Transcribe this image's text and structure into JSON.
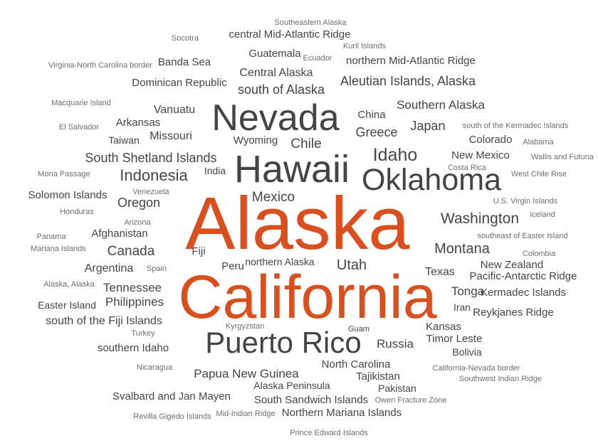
{
  "chart_data": {
    "type": "wordcloud",
    "title": "",
    "colors": {
      "accent": "#d9501e",
      "primary": "#444444",
      "secondary": "#6e6e6e",
      "tertiary": "#8a8a8a"
    },
    "words": [
      {
        "text": "Alaska",
        "weight": 100,
        "tier": "accent"
      },
      {
        "text": "California",
        "weight": 82,
        "tier": "accent"
      },
      {
        "text": "Hawaii",
        "weight": 52,
        "tier": "primary"
      },
      {
        "text": "Nevada",
        "weight": 50,
        "tier": "primary"
      },
      {
        "text": "Oklahoma",
        "weight": 41,
        "tier": "primary"
      },
      {
        "text": "Puerto Rico",
        "weight": 40,
        "tier": "primary"
      },
      {
        "text": "Idaho",
        "weight": 31,
        "tier": "primary"
      },
      {
        "text": "Indonesia",
        "weight": 25,
        "tier": "primary"
      },
      {
        "text": "Washington",
        "weight": 24,
        "tier": "primary"
      },
      {
        "text": "Montana",
        "weight": 22,
        "tier": "primary"
      },
      {
        "text": "Utah",
        "weight": 22,
        "tier": "primary"
      },
      {
        "text": "Chile",
        "weight": 20,
        "tier": "primary"
      },
      {
        "text": "Canada",
        "weight": 20,
        "tier": "primary"
      },
      {
        "text": "Mexico",
        "weight": 20,
        "tier": "primary"
      },
      {
        "text": "Oregon",
        "weight": 19,
        "tier": "primary"
      },
      {
        "text": "Aleutian Islands, Alaska",
        "weight": 18,
        "tier": "primary"
      },
      {
        "text": "south of Alaska",
        "weight": 18,
        "tier": "primary"
      },
      {
        "text": "Greece",
        "weight": 18,
        "tier": "primary"
      },
      {
        "text": "Japan",
        "weight": 18,
        "tier": "primary"
      },
      {
        "text": "South Shetland Islands",
        "weight": 18,
        "tier": "primary"
      },
      {
        "text": "Papua New Guinea",
        "weight": 17,
        "tier": "primary"
      },
      {
        "text": "Tonga",
        "weight": 17,
        "tier": "primary"
      },
      {
        "text": "Philippines",
        "weight": 17,
        "tier": "primary"
      },
      {
        "text": "Russia",
        "weight": 17,
        "tier": "primary"
      },
      {
        "text": "Southern Alaska",
        "weight": 16,
        "tier": "primary"
      },
      {
        "text": "Tennessee",
        "weight": 16,
        "tier": "primary"
      },
      {
        "text": "Texas",
        "weight": 15,
        "tier": "primary"
      },
      {
        "text": "Central Alaska",
        "weight": 15,
        "tier": "primary"
      },
      {
        "text": "Argentina",
        "weight": 15,
        "tier": "primary"
      },
      {
        "text": "south of the Fiji Islands",
        "weight": 15,
        "tier": "primary"
      },
      {
        "text": "Missouri",
        "weight": 15,
        "tier": "primary"
      },
      {
        "text": "Vanuatu",
        "weight": 15,
        "tier": "primary"
      },
      {
        "text": "Afghanistan",
        "weight": 14,
        "tier": "primary"
      },
      {
        "text": "Timor Leste",
        "weight": 14,
        "tier": "primary"
      },
      {
        "text": "South Sandwich Islands",
        "weight": 14,
        "tier": "primary"
      },
      {
        "text": "Fiji",
        "weight": 14,
        "tier": "primary"
      },
      {
        "text": "Peru",
        "weight": 14,
        "tier": "primary"
      },
      {
        "text": "Guatemala",
        "weight": 14,
        "tier": "primary"
      },
      {
        "text": "Dominican Republic",
        "weight": 14,
        "tier": "primary"
      },
      {
        "text": "Colorado",
        "weight": 14,
        "tier": "primary"
      },
      {
        "text": "North Carolina",
        "weight": 14,
        "tier": "primary"
      },
      {
        "text": "Arkansas",
        "weight": 14,
        "tier": "primary"
      },
      {
        "text": "Tajikistan",
        "weight": 13,
        "tier": "primary"
      },
      {
        "text": "Banda Sea",
        "weight": 13,
        "tier": "primary"
      },
      {
        "text": "New Mexico",
        "weight": 13,
        "tier": "primary"
      },
      {
        "text": "New Zealand",
        "weight": 13,
        "tier": "primary"
      },
      {
        "text": "Kermadec Islands",
        "weight": 13,
        "tier": "primary"
      },
      {
        "text": "Reykjanes Ridge",
        "weight": 13,
        "tier": "primary"
      },
      {
        "text": "Solomon Islands",
        "weight": 13,
        "tier": "primary"
      },
      {
        "text": "Pacific-Antarctic Ridge",
        "weight": 13,
        "tier": "primary"
      },
      {
        "text": "Northern Mariana Islands",
        "weight": 13,
        "tier": "primary"
      },
      {
        "text": "southern Idaho",
        "weight": 13,
        "tier": "primary"
      },
      {
        "text": "Wyoming",
        "weight": 13,
        "tier": "primary"
      },
      {
        "text": "northern Mid-Atlantic Ridge",
        "weight": 13,
        "tier": "primary"
      },
      {
        "text": "central Mid-Atlantic Ridge",
        "weight": 13,
        "tier": "primary"
      },
      {
        "text": "Kansas",
        "weight": 13,
        "tier": "primary"
      },
      {
        "text": "Svalbard and Jan Mayen",
        "weight": 13,
        "tier": "primary"
      },
      {
        "text": "China",
        "weight": 13,
        "tier": "primary"
      },
      {
        "text": "Bolivia",
        "weight": 12,
        "tier": "primary"
      },
      {
        "text": "Alaska Peninsula",
        "weight": 12,
        "tier": "primary"
      },
      {
        "text": "Pakistan",
        "weight": 12,
        "tier": "primary"
      },
      {
        "text": "Taiwan",
        "weight": 12,
        "tier": "primary"
      },
      {
        "text": "India",
        "weight": 12,
        "tier": "primary"
      },
      {
        "text": "northern Alaska",
        "weight": 12,
        "tier": "primary"
      },
      {
        "text": "Easter Island",
        "weight": 12,
        "tier": "primary"
      },
      {
        "text": "Iran",
        "weight": 12,
        "tier": "primary"
      },
      {
        "text": "Guam",
        "weight": 11,
        "tier": "primary"
      },
      {
        "text": "West Chile Rise",
        "weight": 11,
        "tier": "secondary"
      },
      {
        "text": "U.S. Virgin Islands",
        "weight": 11,
        "tier": "secondary"
      },
      {
        "text": "Macquarie Island",
        "weight": 11,
        "tier": "secondary"
      },
      {
        "text": "El Salvador",
        "weight": 11,
        "tier": "secondary"
      },
      {
        "text": "Mona Passage",
        "weight": 11,
        "tier": "secondary"
      },
      {
        "text": "Honduras",
        "weight": 11,
        "tier": "secondary"
      },
      {
        "text": "Panama",
        "weight": 11,
        "tier": "secondary"
      },
      {
        "text": "Mariana Islands",
        "weight": 11,
        "tier": "secondary"
      },
      {
        "text": "Alaska, Alaska",
        "weight": 11,
        "tier": "secondary"
      },
      {
        "text": "Virginia-North Carolina border",
        "weight": 11,
        "tier": "secondary"
      },
      {
        "text": "Socotra",
        "weight": 11,
        "tier": "secondary"
      },
      {
        "text": "Southeastern Alaska",
        "weight": 11,
        "tier": "secondary"
      },
      {
        "text": "Kuril Islands",
        "weight": 11,
        "tier": "secondary"
      },
      {
        "text": "Ecuador",
        "weight": 11,
        "tier": "secondary"
      },
      {
        "text": "south of the Kermadec Islands",
        "weight": 11,
        "tier": "secondary"
      },
      {
        "text": "Alabama",
        "weight": 11,
        "tier": "secondary"
      },
      {
        "text": "Wallis and Futuna",
        "weight": 11,
        "tier": "secondary"
      },
      {
        "text": "Costa Rica",
        "weight": 11,
        "tier": "secondary"
      },
      {
        "text": "Venezuela",
        "weight": 11,
        "tier": "secondary"
      },
      {
        "text": "Arizona",
        "weight": 11,
        "tier": "secondary"
      },
      {
        "text": "Spain",
        "weight": 11,
        "tier": "secondary"
      },
      {
        "text": "Iceland",
        "weight": 11,
        "tier": "secondary"
      },
      {
        "text": "southeast of Easter Island",
        "weight": 11,
        "tier": "secondary"
      },
      {
        "text": "Colombia",
        "weight": 11,
        "tier": "secondary"
      },
      {
        "text": "Turkey",
        "weight": 11,
        "tier": "secondary"
      },
      {
        "text": "Kyrgyzstan",
        "weight": 11,
        "tier": "secondary"
      },
      {
        "text": "Nicaragua",
        "weight": 11,
        "tier": "secondary"
      },
      {
        "text": "California-Nevada border",
        "weight": 11,
        "tier": "secondary"
      },
      {
        "text": "Southwest Indian Ridge",
        "weight": 11,
        "tier": "secondary"
      },
      {
        "text": "Owen Fracture Zone",
        "weight": 11,
        "tier": "secondary"
      },
      {
        "text": "Revilla Gigedo Islands",
        "weight": 11,
        "tier": "secondary"
      },
      {
        "text": "Mid-Indian Ridge",
        "weight": 11,
        "tier": "secondary"
      },
      {
        "text": "Prince Edward Islands",
        "weight": 11,
        "tier": "secondary"
      }
    ]
  }
}
